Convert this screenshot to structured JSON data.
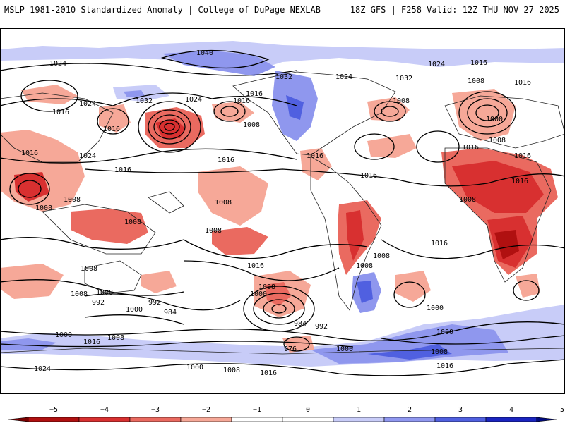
{
  "header": {
    "left": "MSLP 1981-2010 Standardized Anomaly | College of DuPage NEXLAB",
    "right": "18Z GFS | F258 Valid: 12Z THU NOV 27 2025"
  },
  "colorbar": {
    "ticks": [
      "−5",
      "−4",
      "−3",
      "−2",
      "−1",
      "0",
      "1",
      "2",
      "3",
      "4",
      "5"
    ],
    "colors": [
      "#7a0000",
      "#b01010",
      "#d83030",
      "#ea6a60",
      "#f6a898",
      "#ffffff",
      "#ffffff",
      "#c8ccf8",
      "#9098f0",
      "#5060e0",
      "#1a24c0",
      "#000a80"
    ]
  },
  "isobars": [
    "1040",
    "1024",
    "1032",
    "1024",
    "1032",
    "1024",
    "1016",
    "1008",
    "1000",
    "1008",
    "1016",
    "1024",
    "1016",
    "1016",
    "1032",
    "1016",
    "1008",
    "1008",
    "1016",
    "1024",
    "1016",
    "1016",
    "1008",
    "1008",
    "1008",
    "1016",
    "1008",
    "1008",
    "1008",
    "1008",
    "1008",
    "1008",
    "1016",
    "1016",
    "1008",
    "992",
    "1000",
    "992",
    "984",
    "1008",
    "1000",
    "984",
    "992",
    "976",
    "1000",
    "1008",
    "1016",
    "1000",
    "1008",
    "1016",
    "1000",
    "1000",
    "1016",
    "1024",
    "1000",
    "1008",
    "1016",
    "1016",
    "1024",
    "1016",
    "1016",
    "1008",
    "1016"
  ]
}
